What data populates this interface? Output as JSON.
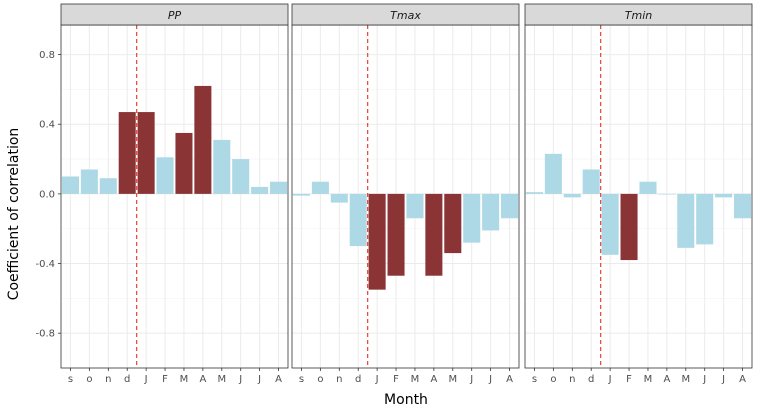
{
  "chart_data": {
    "type": "bar",
    "facet": true,
    "xlabel": "Month",
    "ylabel": "Coefficient of correlation",
    "ylim": [
      -1.0,
      0.97
    ],
    "yticks": [
      -0.8,
      -0.4,
      0.0,
      0.4,
      0.8
    ],
    "ytick_labels": [
      "-0.8",
      "-0.4",
      "0.0",
      "0.4",
      "0.8"
    ],
    "categories": [
      "s",
      "o",
      "n",
      "d",
      "J",
      "F",
      "M",
      "A",
      "M",
      "J",
      "J",
      "A"
    ],
    "grid": true,
    "reference_line": {
      "position_between": [
        "d",
        "J"
      ],
      "style": "dashed"
    },
    "colors": {
      "significant": "#8b3436",
      "not_significant": "#add8e6",
      "reference_line": "#e8413a",
      "strip_background": "#d9d9d9",
      "grid": "#ebebeb"
    },
    "panels": [
      {
        "title": "PP",
        "values": [
          0.1,
          0.14,
          0.09,
          0.47,
          0.47,
          0.21,
          0.35,
          0.62,
          0.31,
          0.2,
          0.04,
          0.07
        ],
        "significant": [
          false,
          false,
          false,
          true,
          true,
          false,
          true,
          true,
          false,
          false,
          false,
          false
        ]
      },
      {
        "title": "Tmax",
        "values": [
          -0.01,
          0.07,
          -0.05,
          -0.3,
          -0.55,
          -0.47,
          -0.14,
          -0.47,
          -0.34,
          -0.28,
          -0.21,
          -0.14
        ],
        "significant": [
          false,
          false,
          false,
          false,
          true,
          true,
          false,
          true,
          true,
          false,
          false,
          false
        ]
      },
      {
        "title": "Tmin",
        "values": [
          0.01,
          0.23,
          -0.02,
          0.14,
          -0.35,
          -0.38,
          0.07,
          0.0,
          -0.31,
          -0.29,
          -0.02,
          -0.14
        ],
        "significant": [
          false,
          false,
          false,
          false,
          false,
          true,
          false,
          false,
          false,
          false,
          false,
          false
        ]
      }
    ]
  }
}
